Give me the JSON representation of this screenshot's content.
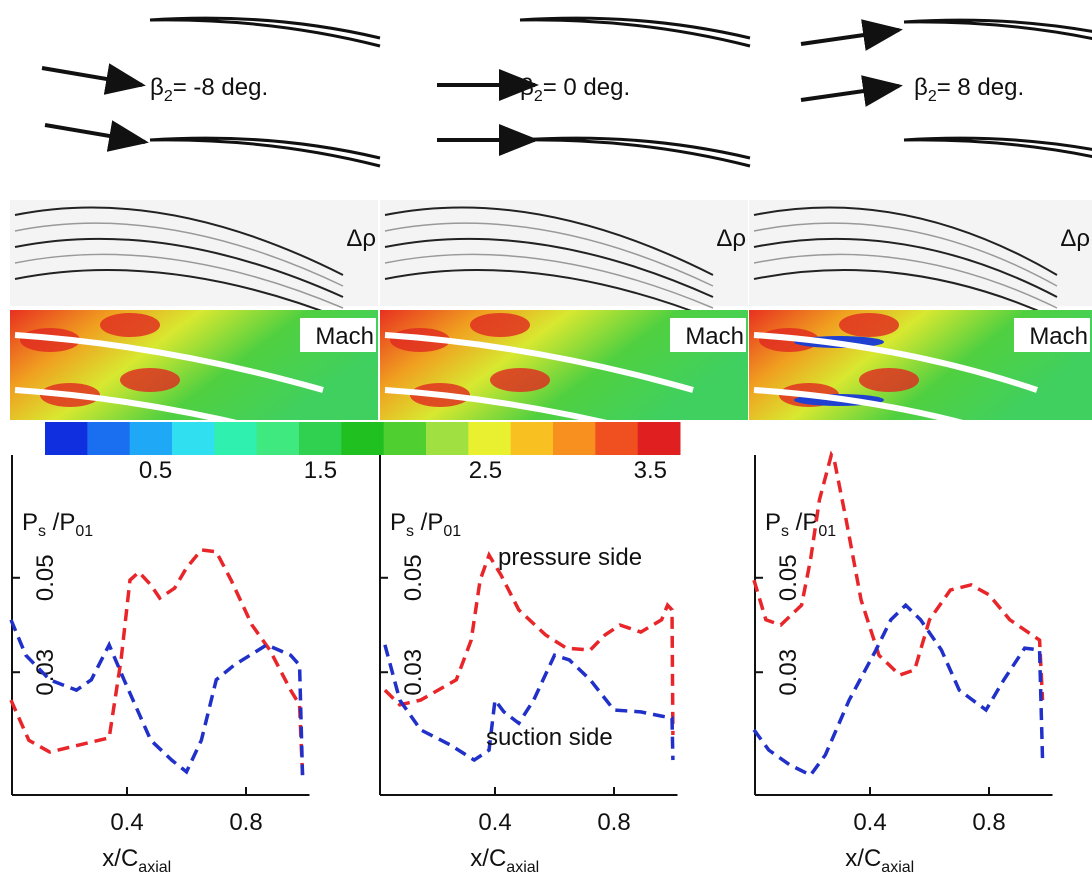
{
  "panels": [
    {
      "beta": [
        "β",
        "2",
        "= -8 deg."
      ],
      "density_label": "Δρ",
      "mach_label": "Mach"
    },
    {
      "beta": [
        "β",
        "2",
        "= 0 deg."
      ],
      "density_label": "Δρ",
      "mach_label": "Mach"
    },
    {
      "beta": [
        "β",
        "2",
        "= 8 deg."
      ],
      "density_label": "Δρ",
      "mach_label": "Mach"
    }
  ],
  "colorbar": {
    "colors": [
      "#1030e0",
      "#1a6ef0",
      "#1ea8f5",
      "#30e0f0",
      "#30f0b0",
      "#40e880",
      "#30d050",
      "#20c020",
      "#50d030",
      "#a0e040",
      "#e8f030",
      "#f8c020",
      "#f89020",
      "#f05020",
      "#e02020"
    ],
    "lim": [
      -0.17,
      3.68
    ],
    "ticks": [
      0.5,
      1.5,
      2.5,
      3.5
    ]
  },
  "chart_data": [
    {
      "type": "line",
      "y_label": [
        "P",
        "s",
        " /P",
        "01"
      ],
      "x_label": [
        "x/C",
        "axial"
      ],
      "xlim": [
        0,
        1
      ],
      "ylim": [
        0.004,
        0.076
      ],
      "xticks": [
        0.4,
        0.8
      ],
      "yticks": [
        0.03,
        0.05
      ],
      "series": [
        {
          "color": "#e8262a",
          "x": [
            0.01,
            0.07,
            0.14,
            0.24,
            0.34,
            0.38,
            0.41,
            0.44,
            0.48,
            0.51,
            0.56,
            0.6,
            0.65,
            0.7,
            0.75,
            0.82,
            0.88,
            0.95,
            0.98,
            0.99
          ],
          "values": [
            0.0241,
            0.0156,
            0.0131,
            0.0146,
            0.0161,
            0.0326,
            0.0495,
            0.0512,
            0.0485,
            0.0457,
            0.0478,
            0.0521,
            0.0559,
            0.0555,
            0.0495,
            0.04,
            0.0347,
            0.0262,
            0.0231,
            0.0082
          ]
        },
        {
          "color": "#2030c8",
          "x": [
            0.01,
            0.06,
            0.14,
            0.23,
            0.28,
            0.34,
            0.39,
            0.48,
            0.55,
            0.6,
            0.65,
            0.7,
            0.76,
            0.87,
            0.95,
            0.98,
            0.99
          ],
          "values": [
            0.0411,
            0.0336,
            0.0284,
            0.0262,
            0.0284,
            0.0358,
            0.0284,
            0.0156,
            0.0114,
            0.0089,
            0.0156,
            0.0284,
            0.0315,
            0.0358,
            0.0336,
            0.0315,
            0.0082
          ]
        }
      ]
    },
    {
      "type": "line",
      "y_label": [
        "P",
        "s",
        " /P",
        "01"
      ],
      "x_label": [
        "x/C",
        "axial"
      ],
      "xlim": [
        0,
        1
      ],
      "ylim": [
        0.004,
        0.076
      ],
      "xticks": [
        0.4,
        0.8
      ],
      "yticks": [
        0.03,
        0.05
      ],
      "series": [
        {
          "name": "pressure side",
          "color": "#e8262a",
          "x": [
            0.03,
            0.08,
            0.15,
            0.27,
            0.32,
            0.35,
            0.38,
            0.42,
            0.48,
            0.57,
            0.64,
            0.72,
            0.77,
            0.82,
            0.89,
            0.96,
            0.98,
            0.995,
            0.998
          ],
          "values": [
            0.0262,
            0.0231,
            0.0241,
            0.0284,
            0.0368,
            0.0495,
            0.0548,
            0.0506,
            0.0432,
            0.0379,
            0.0351,
            0.0347,
            0.0379,
            0.04,
            0.0385,
            0.0411,
            0.0442,
            0.0432,
            0.0167
          ]
        },
        {
          "name": "suction side",
          "color": "#2030c8",
          "x": [
            0.03,
            0.08,
            0.15,
            0.25,
            0.33,
            0.38,
            0.4,
            0.43,
            0.48,
            0.53,
            0.6,
            0.65,
            0.72,
            0.8,
            0.89,
            0.96,
            0.995,
            0.998
          ],
          "values": [
            0.0358,
            0.0241,
            0.0178,
            0.0146,
            0.0114,
            0.0135,
            0.0241,
            0.0216,
            0.0192,
            0.0241,
            0.0336,
            0.0326,
            0.0284,
            0.022,
            0.0216,
            0.0207,
            0.0203,
            0.0114
          ]
        }
      ]
    },
    {
      "type": "line",
      "y_label": [
        "P",
        "s",
        " /P",
        "01"
      ],
      "x_label": [
        "x/C",
        "axial"
      ],
      "xlim": [
        0,
        1
      ],
      "ylim": [
        0.004,
        0.076
      ],
      "xticks": [
        0.4,
        0.8
      ],
      "yticks": [
        0.03,
        0.05
      ],
      "series": [
        {
          "color": "#e8262a",
          "x": [
            0.01,
            0.05,
            0.1,
            0.17,
            0.2,
            0.23,
            0.27,
            0.28,
            0.32,
            0.37,
            0.43,
            0.5,
            0.55,
            0.6,
            0.67,
            0.74,
            0.8,
            0.87,
            0.97,
            0.98
          ],
          "values": [
            0.0495,
            0.0411,
            0.04,
            0.0442,
            0.0538,
            0.0665,
            0.076,
            0.0749,
            0.0622,
            0.0453,
            0.0336,
            0.0294,
            0.0305,
            0.0411,
            0.0474,
            0.0485,
            0.0464,
            0.0411,
            0.0368,
            0.0241
          ]
        },
        {
          "color": "#2030c8",
          "x": [
            0.01,
            0.06,
            0.13,
            0.2,
            0.25,
            0.33,
            0.42,
            0.47,
            0.52,
            0.57,
            0.64,
            0.7,
            0.79,
            0.85,
            0.92,
            0.97,
            0.98
          ],
          "values": [
            0.0178,
            0.0135,
            0.0104,
            0.0082,
            0.0125,
            0.0241,
            0.0347,
            0.0411,
            0.0442,
            0.0411,
            0.0347,
            0.0262,
            0.022,
            0.0284,
            0.0351,
            0.0347,
            0.0114
          ]
        }
      ]
    }
  ]
}
